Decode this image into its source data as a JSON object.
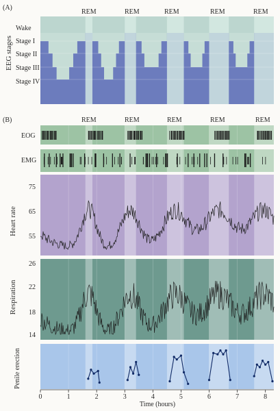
{
  "panel_a": {
    "label": "(A)",
    "ylabel": "EEG stages",
    "stages": [
      "Wake",
      "Stage I",
      "Stage II",
      "Stage III",
      "Stage IV"
    ],
    "rem_label": "REM"
  },
  "panel_b": {
    "label": "(B)",
    "rem_label": "REM",
    "eog_label": "EOG",
    "emg_label": "EMG",
    "heart_rate": {
      "ylabel": "Heart rate",
      "ticks": [
        "75",
        "65",
        "55"
      ]
    },
    "respiration": {
      "ylabel": "Respiration",
      "ticks": [
        "26",
        "22",
        "18",
        "14"
      ]
    },
    "penile": {
      "ylabel": "Penile erection"
    },
    "xaxis": {
      "label": "Time (hours)",
      "ticks": [
        "0",
        "1",
        "2",
        "3",
        "4",
        "5",
        "6",
        "7",
        "8"
      ]
    }
  },
  "colors": {
    "bg": "#fbfaf7",
    "wake_band": "#bcd6cf",
    "stage_deep": "#6c7cbd",
    "stage_light": "#c6ddd6",
    "rem_band": "#d7ebe3",
    "eog_emg_bg": "#9dc3a4",
    "heart_bg": "#b3a3cd",
    "resp_bg": "#6e9a8f",
    "penile_bg": "#a9c6ea"
  },
  "chart_data": {
    "type": "line",
    "x_unit": "hours",
    "xlim": [
      0,
      8.3
    ],
    "rem_periods_hours": [
      [
        1.6,
        1.85
      ],
      [
        3.0,
        3.4
      ],
      [
        4.5,
        5.1
      ],
      [
        6.0,
        6.7
      ],
      [
        7.6,
        8.3
      ]
    ],
    "heart_rate": {
      "ylim": [
        50,
        78
      ]
    },
    "respiration": {
      "ylim": [
        13,
        27
      ]
    },
    "penile_erection": {
      "segments": [
        [
          [
            1.7,
            7
          ],
          [
            1.8,
            14
          ],
          [
            1.9,
            11
          ],
          [
            2.05,
            13
          ],
          [
            2.1,
            4
          ]
        ],
        [
          [
            3.1,
            6
          ],
          [
            3.2,
            16
          ],
          [
            3.3,
            11
          ],
          [
            3.4,
            20
          ],
          [
            3.5,
            10
          ]
        ],
        [
          [
            4.6,
            5
          ],
          [
            4.75,
            24
          ],
          [
            4.85,
            22
          ],
          [
            5.0,
            25
          ],
          [
            5.1,
            12
          ],
          [
            5.25,
            3
          ]
        ],
        [
          [
            6.0,
            6
          ],
          [
            6.15,
            27
          ],
          [
            6.3,
            26
          ],
          [
            6.4,
            29
          ],
          [
            6.5,
            26
          ],
          [
            6.6,
            29
          ],
          [
            6.75,
            6
          ]
        ],
        [
          [
            7.6,
            9
          ],
          [
            7.7,
            18
          ],
          [
            7.8,
            16
          ],
          [
            7.9,
            21
          ],
          [
            8.0,
            18
          ],
          [
            8.1,
            20
          ],
          [
            8.25,
            5
          ]
        ]
      ]
    }
  }
}
